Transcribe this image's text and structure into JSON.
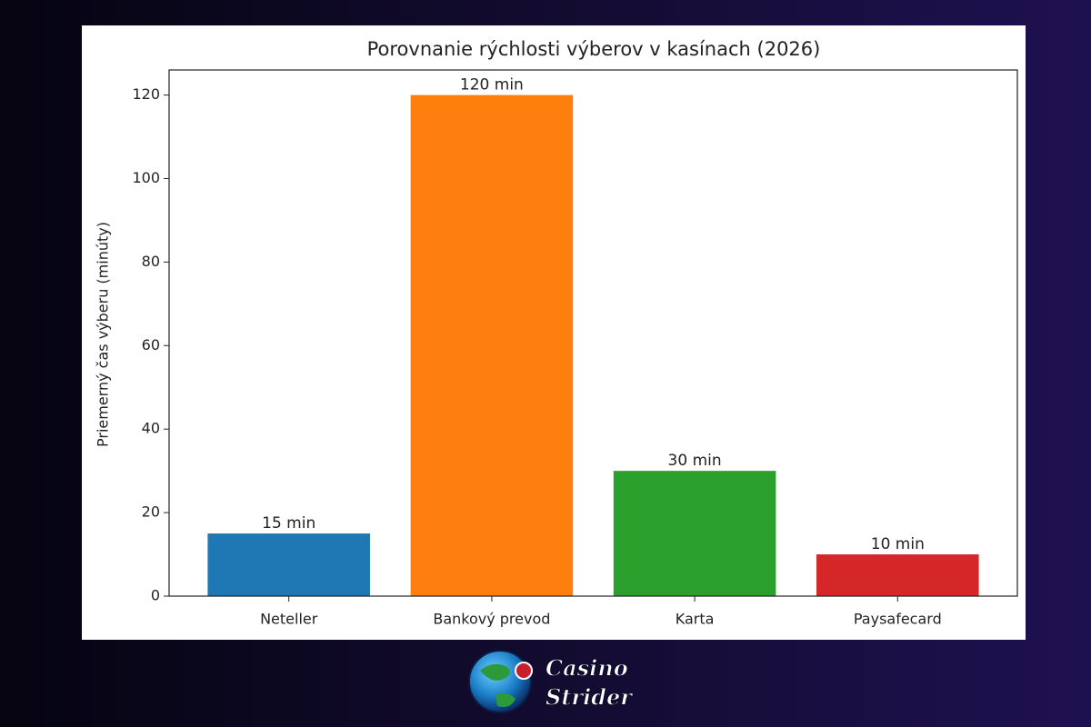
{
  "chart_data": {
    "type": "bar",
    "title": "Porovnanie rýchlosti výberov v kasínach (2026)",
    "y_label": "Priemerný čas výberu (minúty)",
    "categories": [
      "Neteller",
      "Bankový prevod",
      "Karta",
      "Paysafecard"
    ],
    "values": [
      15,
      120,
      30,
      10
    ],
    "value_labels": [
      "15 min",
      "120 min",
      "30 min",
      "10 min"
    ],
    "colors": [
      "#1f77b4",
      "#ff7f0e",
      "#2ca02c",
      "#d62728"
    ],
    "ylim": [
      0,
      126
    ],
    "yticks": [
      0,
      20,
      40,
      60,
      80,
      100,
      120
    ],
    "grid": false
  },
  "logo": {
    "lines": [
      "Casino",
      "Strider"
    ]
  }
}
